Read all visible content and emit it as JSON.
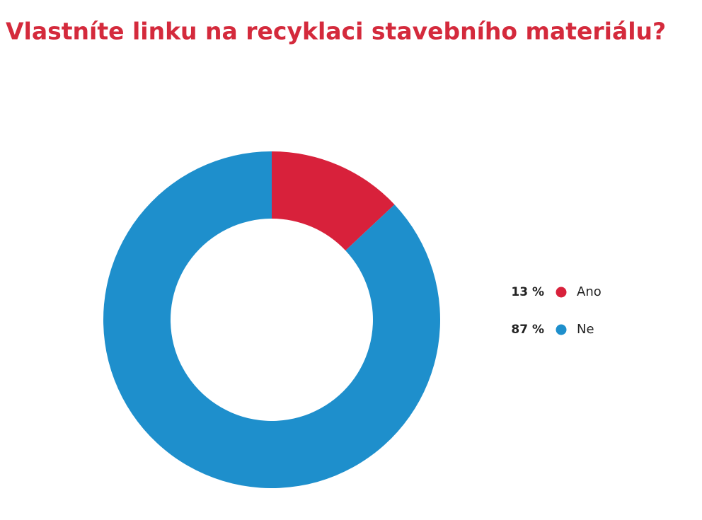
{
  "chart_data": {
    "type": "donut",
    "title": "Vlastníte linku na recyklaci stavebního materiálu?",
    "categories": [
      "Ano",
      "Ne"
    ],
    "values": [
      13,
      87
    ],
    "value_labels": [
      "13 %",
      "87 %"
    ],
    "colors": [
      "#d8213b",
      "#1e8fcc"
    ],
    "legend": "right"
  }
}
